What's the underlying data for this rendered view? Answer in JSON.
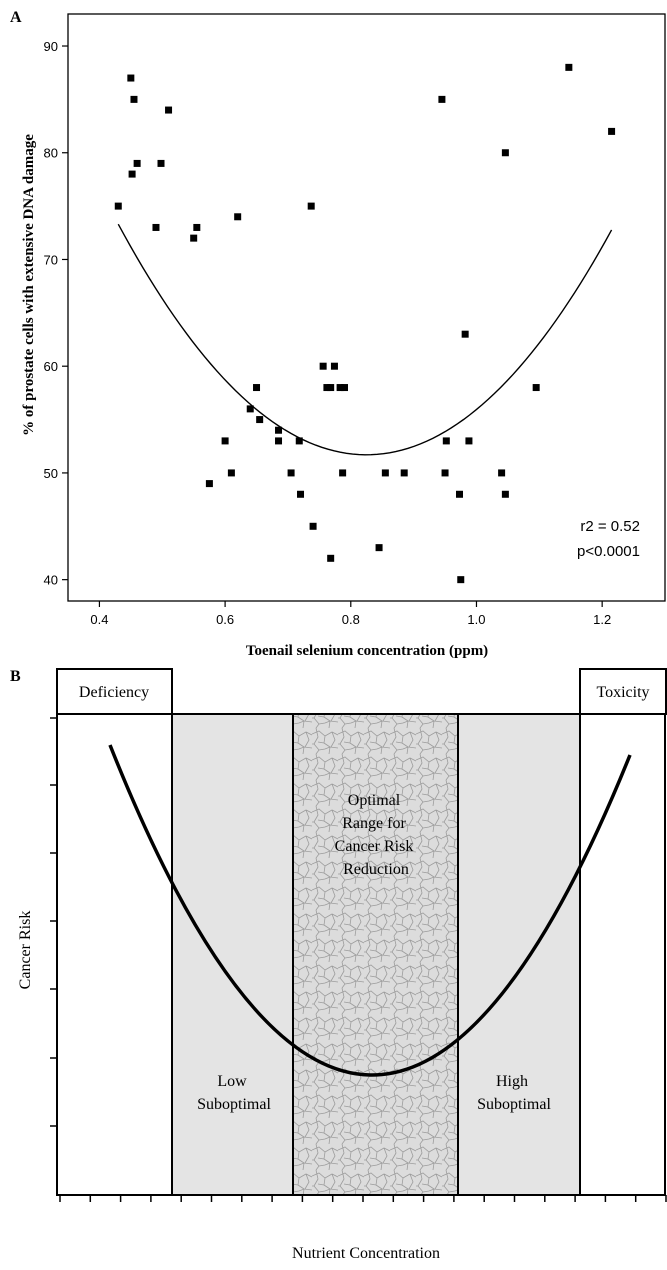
{
  "chart_data": [
    {
      "panel": "A",
      "type": "scatter",
      "xlabel": "Toenail selenium concentration (ppm)",
      "ylabel": "% of prostate cells with extensive DNA damage",
      "xlim": [
        0.35,
        1.3
      ],
      "ylim": [
        38,
        93
      ],
      "xticks": [
        "0.4",
        "0.6",
        "0.8",
        "1.0",
        "1.2"
      ],
      "yticks": [
        "40",
        "50",
        "60",
        "70",
        "80",
        "90"
      ],
      "annotation": [
        "r2 = 0.52",
        "p<0.0001"
      ],
      "points": [
        {
          "x": 0.43,
          "y": 75
        },
        {
          "x": 0.45,
          "y": 87
        },
        {
          "x": 0.452,
          "y": 78
        },
        {
          "x": 0.455,
          "y": 85
        },
        {
          "x": 0.46,
          "y": 79
        },
        {
          "x": 0.49,
          "y": 73
        },
        {
          "x": 0.498,
          "y": 79
        },
        {
          "x": 0.51,
          "y": 84
        },
        {
          "x": 0.55,
          "y": 72
        },
        {
          "x": 0.555,
          "y": 73
        },
        {
          "x": 0.575,
          "y": 49
        },
        {
          "x": 0.6,
          "y": 53
        },
        {
          "x": 0.61,
          "y": 50
        },
        {
          "x": 0.62,
          "y": 74
        },
        {
          "x": 0.64,
          "y": 56
        },
        {
          "x": 0.65,
          "y": 58
        },
        {
          "x": 0.655,
          "y": 55
        },
        {
          "x": 0.685,
          "y": 54
        },
        {
          "x": 0.685,
          "y": 53
        },
        {
          "x": 0.705,
          "y": 50
        },
        {
          "x": 0.718,
          "y": 53
        },
        {
          "x": 0.72,
          "y": 48
        },
        {
          "x": 0.737,
          "y": 75
        },
        {
          "x": 0.74,
          "y": 45
        },
        {
          "x": 0.756,
          "y": 60
        },
        {
          "x": 0.762,
          "y": 58
        },
        {
          "x": 0.768,
          "y": 58
        },
        {
          "x": 0.768,
          "y": 42
        },
        {
          "x": 0.774,
          "y": 60
        },
        {
          "x": 0.783,
          "y": 58
        },
        {
          "x": 0.787,
          "y": 50
        },
        {
          "x": 0.79,
          "y": 58
        },
        {
          "x": 0.845,
          "y": 43
        },
        {
          "x": 0.855,
          "y": 50
        },
        {
          "x": 0.885,
          "y": 50
        },
        {
          "x": 0.945,
          "y": 85
        },
        {
          "x": 0.95,
          "y": 50
        },
        {
          "x": 0.952,
          "y": 53
        },
        {
          "x": 0.973,
          "y": 48
        },
        {
          "x": 0.975,
          "y": 40
        },
        {
          "x": 0.982,
          "y": 63
        },
        {
          "x": 0.988,
          "y": 53
        },
        {
          "x": 1.04,
          "y": 50
        },
        {
          "x": 1.046,
          "y": 48
        },
        {
          "x": 1.046,
          "y": 80
        },
        {
          "x": 1.095,
          "y": 58
        },
        {
          "x": 1.147,
          "y": 88
        },
        {
          "x": 1.215,
          "y": 82
        }
      ],
      "fit": {
        "type": "quadratic",
        "vertex_x": 0.825,
        "vertex_y": 51.7,
        "a": 138.5,
        "x_range": [
          0.43,
          1.215
        ]
      }
    },
    {
      "panel": "B",
      "type": "diagram",
      "xlabel": "Nutrient Concentration",
      "ylabel": "Cancer Risk",
      "top_labels": [
        "Deficiency",
        "Toxicity"
      ],
      "regions": [
        {
          "name": "Deficiency",
          "fill": "#ffffff"
        },
        {
          "name": "Low Suboptimal",
          "fill": "#e4e4e4"
        },
        {
          "name": "Optimal Range for Cancer Risk Reduction",
          "fill": "#d8d8d8"
        },
        {
          "name": "High Suboptimal",
          "fill": "#e4e4e4"
        },
        {
          "name": "Toxicity",
          "fill": "#ffffff"
        }
      ]
    }
  ],
  "labels": {
    "panel_a": "A",
    "panel_b": "B",
    "deficiency": "Deficiency",
    "toxicity": "Toxicity",
    "optimal_lines": [
      "Optimal",
      "Range for",
      "Cancer Risk",
      "Reduction"
    ],
    "low_lines": [
      "Low",
      "Suboptimal"
    ],
    "high_lines": [
      "High",
      "Suboptimal"
    ]
  }
}
